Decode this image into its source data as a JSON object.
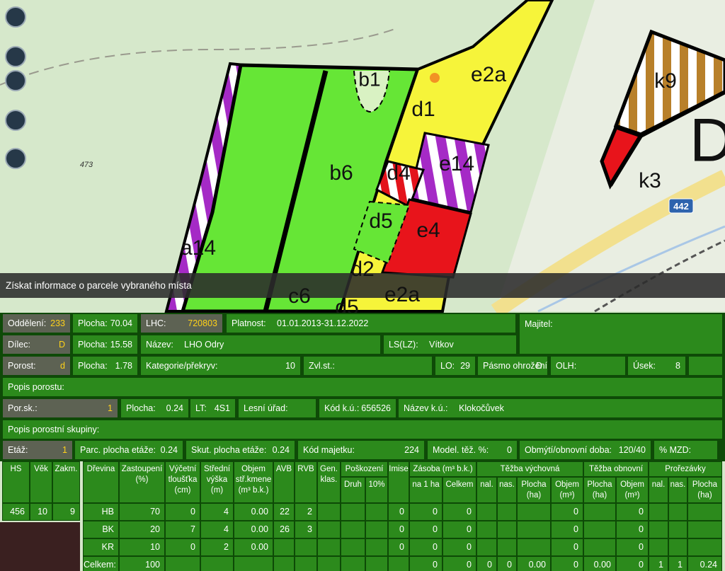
{
  "map": {
    "labels": [
      "b1",
      "e2a",
      "d1",
      "b6",
      "d4",
      "e14",
      "d5",
      "e4",
      "a14",
      "d2",
      "c6",
      "e2a",
      "d5",
      "k9",
      "k3",
      "D"
    ],
    "elevation": "473",
    "road": "442"
  },
  "banner": "Získat informace o parcele vybraného místa",
  "panel": {
    "rows": [
      [
        {
          "label": "Oddělení:",
          "value": "233"
        },
        {
          "label": "Plocha:",
          "value": "70.04"
        },
        {
          "label": "LHC:",
          "value": "720803"
        },
        {
          "label": "Platnost:",
          "value": "01.01.2013-31.12.2022"
        },
        {
          "label": "Majitel:"
        }
      ],
      [
        {
          "label": "Dílec:",
          "value": "D"
        },
        {
          "label": "Plocha:",
          "value": "15.58"
        },
        {
          "label": "Název:",
          "value": "LHO Odry"
        },
        {
          "label": "LS(LZ):",
          "value": "Vítkov"
        }
      ],
      [
        {
          "label": "Porost:",
          "value": "d"
        },
        {
          "label": "Plocha:",
          "value": "1.78"
        },
        {
          "label": "Kategorie/překryv:",
          "value": "10"
        },
        {
          "label": "Zvl.st.:"
        },
        {
          "label": "LO:",
          "value": "29"
        },
        {
          "label": "Pásmo ohrožení:",
          "value": "D"
        },
        {
          "label": "OLH:"
        },
        {
          "label": "Úsek:",
          "value": "8"
        }
      ],
      [
        {
          "label": "Popis porostu:"
        }
      ],
      [
        {
          "label": "Por.sk.:",
          "value": "1"
        },
        {
          "label": "Plocha:",
          "value": "0.24"
        },
        {
          "label": "LT:",
          "value": "4S1"
        },
        {
          "label": "Lesní úřad:"
        },
        {
          "label": "Kód k.ú.:",
          "value": "656526"
        },
        {
          "label": "Název k.ú.:",
          "value": "Klokočůvek"
        }
      ],
      [
        {
          "label": "Popis porostní skupiny:"
        }
      ],
      [
        {
          "label": "Etáž:",
          "value": "1"
        },
        {
          "label": "Parc. plocha etáže:",
          "value": "0.24"
        },
        {
          "label": "Skut. plocha etáže:",
          "value": "0.24"
        },
        {
          "label": "Kód majetku:",
          "value": "224"
        },
        {
          "label": "Model. těž. %:",
          "value": "0"
        },
        {
          "label": "Obmýtí/obnovní doba:",
          "value": "120/40"
        },
        {
          "label": "% MZD:"
        }
      ]
    ]
  },
  "table": {
    "left": {
      "columns": [
        "HS",
        "Věk",
        "Zakm."
      ],
      "rows": [
        [
          "456",
          "10",
          "9"
        ]
      ]
    },
    "right": {
      "columns": [
        {
          "label": "Dřevina"
        },
        {
          "label": "Zastoupení\n(%)"
        },
        {
          "label": "Výčetní\ntloušťka\n(cm)"
        },
        {
          "label": "Střední\nvýška\n(m)"
        },
        {
          "label": "Objem\nstř.kmene\n(m³ b.k.)"
        },
        {
          "label": "AVB"
        },
        {
          "label": "RVB"
        },
        {
          "label": "Gen.\nklas."
        },
        {
          "label": "Poškození",
          "sub": [
            "Druh",
            "10%"
          ]
        },
        {
          "label": "Imise"
        },
        {
          "label": "Zásoba (m³ b.k.)",
          "sub": [
            "na 1 ha",
            "Celkem"
          ]
        },
        {
          "label": "Těžba výchovná",
          "sub": [
            "nal.",
            "nas.",
            "Plocha\n(ha)",
            "Objem\n(m³)"
          ]
        },
        {
          "label": "Těžba obnovní",
          "sub": [
            "Plocha\n(ha)",
            "Objem\n(m³)"
          ]
        },
        {
          "label": "Prořezávky",
          "sub": [
            "nal.",
            "nas.",
            "Plocha\n(ha)"
          ]
        }
      ],
      "rows": [
        [
          "HB",
          "70",
          "0",
          "4",
          "0.00",
          "22",
          "2",
          null,
          null,
          null,
          "0",
          "0",
          "0",
          null,
          null,
          null,
          "0",
          null,
          "0",
          null,
          null,
          null
        ],
        [
          "BK",
          "20",
          "7",
          "4",
          "0.00",
          "26",
          "3",
          null,
          null,
          null,
          "0",
          "0",
          "0",
          null,
          null,
          null,
          "0",
          null,
          "0",
          null,
          null,
          null
        ],
        [
          "KR",
          "10",
          "0",
          "2",
          "0.00",
          null,
          null,
          null,
          null,
          null,
          "0",
          "0",
          "0",
          null,
          null,
          null,
          "0",
          null,
          "0",
          null,
          null,
          null
        ],
        [
          "Celkem:",
          "100",
          null,
          null,
          null,
          null,
          null,
          null,
          null,
          null,
          null,
          "0",
          "0",
          "0",
          "0",
          "0.00",
          "0",
          "0.00",
          "0",
          "1",
          "1",
          "0.24"
        ]
      ]
    }
  }
}
